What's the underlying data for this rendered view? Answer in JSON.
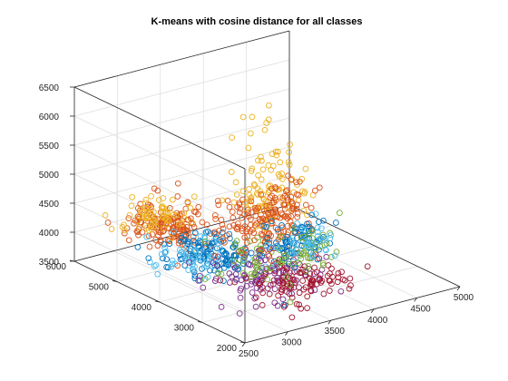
{
  "chart_data": {
    "type": "scatter",
    "title": "K-means with cosine distance for all classes",
    "marker": "circle-open",
    "grid": true,
    "view": "3d",
    "axes": {
      "x": {
        "label": "",
        "lim": [
          2500,
          5000
        ],
        "ticks": [
          2500,
          3000,
          3500,
          4000,
          4500,
          5000
        ],
        "tick_labels": [
          "2500",
          "3000",
          "3500",
          "4000",
          "4500",
          "5000"
        ]
      },
      "y": {
        "label": "",
        "lim": [
          2000,
          6000
        ],
        "ticks": [
          2000,
          3000,
          4000,
          5000,
          6000
        ],
        "tick_labels": [
          "2000",
          "3000",
          "4000",
          "5000",
          "6000"
        ]
      },
      "z": {
        "label": "",
        "lim": [
          3500,
          6500
        ],
        "ticks": [
          3500,
          4000,
          4500,
          5000,
          5500,
          6000,
          6500
        ],
        "tick_labels": [
          "3500",
          "4000",
          "4500",
          "5000",
          "5500",
          "6000",
          "6500"
        ]
      }
    },
    "colors": [
      "#0072BD",
      "#D95319",
      "#EDB120",
      "#7E2F8E",
      "#77AC30",
      "#4DBEEE",
      "#A2142F"
    ],
    "clusters": [
      {
        "color_index": 1,
        "center": [
          2950,
          4700,
          4420
        ],
        "spread": [
          230,
          320,
          160
        ],
        "count": 160
      },
      {
        "color_index": 2,
        "center": [
          2900,
          4900,
          4520
        ],
        "spread": [
          180,
          220,
          130
        ],
        "count": 70
      },
      {
        "color_index": 0,
        "center": [
          3120,
          4050,
          4060
        ],
        "spread": [
          240,
          360,
          140
        ],
        "count": 130
      },
      {
        "color_index": 5,
        "center": [
          3050,
          4150,
          4000
        ],
        "spread": [
          220,
          300,
          130
        ],
        "count": 60
      },
      {
        "color_index": 3,
        "center": [
          3300,
          3200,
          3950
        ],
        "spread": [
          260,
          380,
          150
        ],
        "count": 110
      },
      {
        "color_index": 6,
        "center": [
          3500,
          2750,
          3900
        ],
        "spread": [
          260,
          330,
          150
        ],
        "count": 110
      },
      {
        "color_index": 4,
        "center": [
          3400,
          3600,
          4000
        ],
        "spread": [
          200,
          300,
          130
        ],
        "count": 50
      },
      {
        "color_index": 1,
        "center": [
          3550,
          3700,
          4450
        ],
        "spread": [
          220,
          280,
          160
        ],
        "count": 90
      },
      {
        "color_index": 2,
        "center": [
          3650,
          3800,
          5050
        ],
        "spread": [
          170,
          260,
          260
        ],
        "count": 80
      },
      {
        "color_index": 1,
        "center": [
          3700,
          3650,
          4800
        ],
        "spread": [
          190,
          260,
          200
        ],
        "count": 80
      },
      {
        "color_index": 0,
        "center": [
          3800,
          3350,
          4300
        ],
        "spread": [
          180,
          260,
          170
        ],
        "count": 80
      },
      {
        "color_index": 4,
        "center": [
          3850,
          3300,
          4200
        ],
        "spread": [
          160,
          220,
          150
        ],
        "count": 40
      },
      {
        "color_index": 5,
        "center": [
          3850,
          3400,
          4250
        ],
        "spread": [
          160,
          240,
          150
        ],
        "count": 40
      },
      {
        "color_index": 2,
        "center": [
          3650,
          3850,
          5750
        ],
        "spread": [
          120,
          200,
          280
        ],
        "count": 18
      }
    ],
    "outliers": [
      {
        "color_index": 2,
        "point": [
          3720,
          3900,
          6450
        ]
      },
      {
        "color_index": 2,
        "point": [
          3680,
          3820,
          6250
        ]
      },
      {
        "color_index": 2,
        "point": [
          2620,
          4650,
          4700
        ]
      },
      {
        "color_index": 2,
        "point": [
          4050,
          3700,
          5300
        ]
      },
      {
        "color_index": 4,
        "point": [
          3300,
          2550,
          3700
        ]
      },
      {
        "color_index": 0,
        "point": [
          3250,
          2600,
          3650
        ]
      },
      {
        "color_index": 3,
        "point": [
          2950,
          2650,
          3720
        ]
      },
      {
        "color_index": 6,
        "point": [
          3050,
          2700,
          3690
        ]
      }
    ]
  }
}
